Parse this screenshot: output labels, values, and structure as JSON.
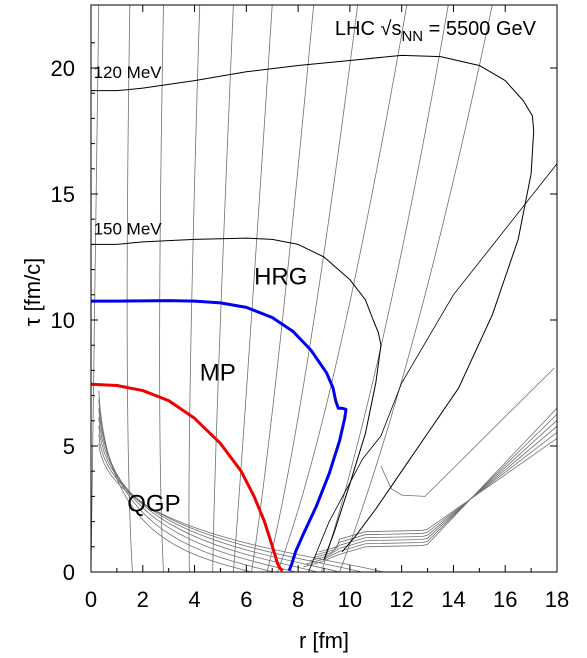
{
  "chart_data": {
    "type": "line",
    "title_main": "LHC √s",
    "title_sub": "NN",
    "title_tail": " = 5500 GeV",
    "xlabel": "r [fm]",
    "ylabel": "τ [fm/c]",
    "xlim": [
      0,
      18
    ],
    "ylim": [
      0,
      22.5
    ],
    "xticks": [
      0,
      2,
      4,
      6,
      8,
      10,
      12,
      14,
      16,
      18
    ],
    "yticks": [
      0,
      5,
      10,
      15,
      20
    ],
    "grid": false,
    "region_labels": [
      {
        "text": "HRG",
        "x": 6.3,
        "y": 11.4
      },
      {
        "text": "MP",
        "x": 4.2,
        "y": 7.6
      },
      {
        "text": "QGP",
        "x": 1.4,
        "y": 2.4
      }
    ],
    "isotherm_labels": [
      {
        "text": "120 MeV",
        "x": 0.1,
        "y": 19.6
      },
      {
        "text": "150 MeV",
        "x": 0.1,
        "y": 13.4
      }
    ],
    "series": [
      {
        "color": "#000000",
        "width": 1.0,
        "x": [
          0,
          1,
          2,
          4,
          6,
          8,
          10,
          12,
          13.5,
          15,
          16,
          16.7,
          17.05,
          17.1,
          17.0,
          16.5,
          15.5,
          14.2,
          13.0,
          12.0,
          11.0,
          10.2,
          9.7
        ],
        "y": [
          19.1,
          19.1,
          19.2,
          19.5,
          19.85,
          20.1,
          20.3,
          20.5,
          20.45,
          20.1,
          19.5,
          18.7,
          18.1,
          17.5,
          15.8,
          13.2,
          10.2,
          7.3,
          5.5,
          4.0,
          2.5,
          1.4,
          0.8
        ]
      },
      {
        "color": "#000000",
        "width": 1.0,
        "x": [
          0,
          1,
          2,
          4,
          6,
          7,
          8,
          9,
          10,
          10.6,
          10.9,
          11.1,
          11.2,
          11.0,
          10.6,
          10.0,
          9.4,
          9.0
        ],
        "y": [
          13.0,
          13.0,
          13.1,
          13.2,
          13.25,
          13.2,
          13.0,
          12.5,
          11.6,
          10.8,
          10.0,
          9.5,
          9.0,
          7.5,
          5.5,
          3.5,
          1.6,
          0.5
        ]
      },
      {
        "color": "#0000ee",
        "width": 3.0,
        "x": [
          0,
          1,
          2,
          3,
          4,
          5,
          6,
          7,
          7.8,
          8.5,
          9.1,
          9.35,
          9.45,
          9.55,
          9.7,
          9.85,
          9.8,
          9.6,
          9.2,
          8.7,
          8.2,
          7.9,
          7.75,
          7.65
        ],
        "y": [
          10.75,
          10.75,
          10.76,
          10.77,
          10.75,
          10.68,
          10.5,
          10.1,
          9.55,
          8.8,
          7.9,
          7.3,
          6.8,
          6.5,
          6.5,
          6.45,
          6.1,
          5.2,
          3.9,
          2.6,
          1.5,
          0.8,
          0.3,
          0.05
        ]
      },
      {
        "color": "#ee0000",
        "width": 3.0,
        "x": [
          0,
          1,
          2,
          3,
          4,
          5,
          5.8,
          6.3,
          6.7,
          6.95,
          7.1,
          7.2,
          7.3,
          7.4
        ],
        "y": [
          7.45,
          7.4,
          7.2,
          6.8,
          6.1,
          5.1,
          4.0,
          3.0,
          2.0,
          1.2,
          0.7,
          0.35,
          0.15,
          0.05
        ]
      }
    ]
  }
}
